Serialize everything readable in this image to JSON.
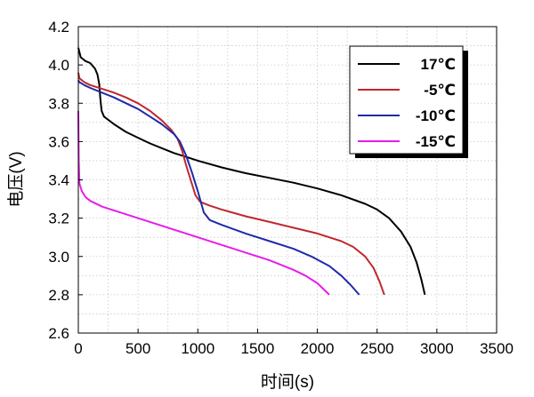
{
  "chart_data": {
    "type": "line",
    "xlabel": "时间(s)",
    "ylabel": "电压(V)",
    "xlim": [
      0,
      3500
    ],
    "ylim": [
      2.6,
      4.2
    ],
    "x_ticks": [
      0,
      500,
      1000,
      1500,
      2000,
      2500,
      3000,
      3500
    ],
    "y_ticks": [
      2.6,
      2.8,
      3.0,
      3.2,
      3.4,
      3.6,
      3.8,
      4.0,
      4.2
    ],
    "grid": true,
    "legend_position": "top-right",
    "series": [
      {
        "name": "17℃",
        "color": "#000000",
        "points": [
          [
            0,
            4.09
          ],
          [
            20,
            4.04
          ],
          [
            60,
            4.02
          ],
          [
            100,
            4.01
          ],
          [
            140,
            3.98
          ],
          [
            160,
            3.95
          ],
          [
            175,
            3.9
          ],
          [
            185,
            3.82
          ],
          [
            195,
            3.76
          ],
          [
            215,
            3.73
          ],
          [
            300,
            3.69
          ],
          [
            400,
            3.65
          ],
          [
            500,
            3.62
          ],
          [
            600,
            3.59
          ],
          [
            700,
            3.565
          ],
          [
            800,
            3.54
          ],
          [
            900,
            3.52
          ],
          [
            1000,
            3.5
          ],
          [
            1200,
            3.465
          ],
          [
            1400,
            3.435
          ],
          [
            1600,
            3.41
          ],
          [
            1800,
            3.385
          ],
          [
            2000,
            3.355
          ],
          [
            2200,
            3.32
          ],
          [
            2400,
            3.275
          ],
          [
            2500,
            3.245
          ],
          [
            2600,
            3.2
          ],
          [
            2700,
            3.13
          ],
          [
            2780,
            3.05
          ],
          [
            2830,
            2.97
          ],
          [
            2870,
            2.88
          ],
          [
            2900,
            2.8
          ]
        ]
      },
      {
        "name": "-5℃",
        "color": "#c0272d",
        "points": [
          [
            0,
            3.96
          ],
          [
            10,
            3.93
          ],
          [
            50,
            3.91
          ],
          [
            100,
            3.895
          ],
          [
            200,
            3.875
          ],
          [
            300,
            3.855
          ],
          [
            400,
            3.83
          ],
          [
            500,
            3.8
          ],
          [
            600,
            3.76
          ],
          [
            700,
            3.71
          ],
          [
            780,
            3.66
          ],
          [
            830,
            3.615
          ],
          [
            870,
            3.55
          ],
          [
            900,
            3.48
          ],
          [
            940,
            3.4
          ],
          [
            980,
            3.32
          ],
          [
            1020,
            3.285
          ],
          [
            1100,
            3.265
          ],
          [
            1200,
            3.245
          ],
          [
            1400,
            3.21
          ],
          [
            1600,
            3.18
          ],
          [
            1800,
            3.15
          ],
          [
            2000,
            3.12
          ],
          [
            2200,
            3.08
          ],
          [
            2300,
            3.05
          ],
          [
            2400,
            3.0
          ],
          [
            2470,
            2.94
          ],
          [
            2520,
            2.87
          ],
          [
            2560,
            2.8
          ]
        ]
      },
      {
        "name": "-10℃",
        "color": "#1f2aa8",
        "points": [
          [
            0,
            3.92
          ],
          [
            10,
            3.91
          ],
          [
            50,
            3.895
          ],
          [
            100,
            3.88
          ],
          [
            200,
            3.855
          ],
          [
            300,
            3.83
          ],
          [
            400,
            3.8
          ],
          [
            500,
            3.77
          ],
          [
            600,
            3.73
          ],
          [
            700,
            3.69
          ],
          [
            800,
            3.64
          ],
          [
            850,
            3.6
          ],
          [
            900,
            3.53
          ],
          [
            950,
            3.44
          ],
          [
            1000,
            3.34
          ],
          [
            1050,
            3.23
          ],
          [
            1100,
            3.19
          ],
          [
            1200,
            3.165
          ],
          [
            1400,
            3.12
          ],
          [
            1600,
            3.08
          ],
          [
            1800,
            3.04
          ],
          [
            1950,
            3.0
          ],
          [
            2100,
            2.95
          ],
          [
            2200,
            2.9
          ],
          [
            2280,
            2.85
          ],
          [
            2350,
            2.8
          ]
        ]
      },
      {
        "name": "-15℃",
        "color": "#e61ee6",
        "points": [
          [
            0,
            3.76
          ],
          [
            4,
            3.5
          ],
          [
            10,
            3.38
          ],
          [
            30,
            3.34
          ],
          [
            60,
            3.31
          ],
          [
            100,
            3.29
          ],
          [
            200,
            3.26
          ],
          [
            400,
            3.22
          ],
          [
            600,
            3.18
          ],
          [
            800,
            3.14
          ],
          [
            1000,
            3.1
          ],
          [
            1200,
            3.06
          ],
          [
            1400,
            3.02
          ],
          [
            1600,
            2.98
          ],
          [
            1800,
            2.93
          ],
          [
            1900,
            2.9
          ],
          [
            2000,
            2.86
          ],
          [
            2100,
            2.8
          ]
        ]
      }
    ]
  }
}
